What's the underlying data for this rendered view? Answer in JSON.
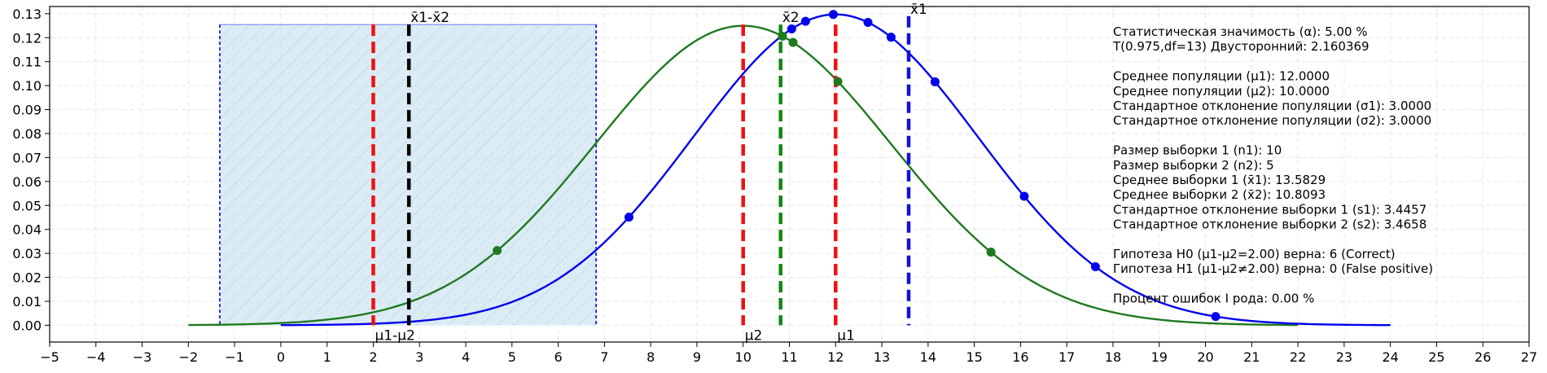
{
  "chart_data": {
    "type": "line",
    "xlim": [
      -5,
      27
    ],
    "ylim": [
      -0.007,
      0.133
    ],
    "x_ticks": [
      -5,
      -4,
      -3,
      -2,
      -1,
      0,
      1,
      2,
      3,
      4,
      5,
      6,
      7,
      8,
      9,
      10,
      11,
      12,
      13,
      14,
      15,
      16,
      17,
      18,
      19,
      20,
      21,
      22,
      23,
      24,
      25,
      26,
      27
    ],
    "x_tick_labels": [
      "−5",
      "−4",
      "−3",
      "−2",
      "−1",
      "0",
      "1",
      "2",
      "3",
      "4",
      "5",
      "6",
      "7",
      "8",
      "9",
      "10",
      "11",
      "12",
      "13",
      "14",
      "15",
      "16",
      "17",
      "18",
      "19",
      "20",
      "21",
      "22",
      "23",
      "24",
      "25",
      "26",
      "27"
    ],
    "y_ticks": [
      0.0,
      0.01,
      0.02,
      0.03,
      0.04,
      0.05,
      0.06,
      0.07,
      0.08,
      0.09,
      0.1,
      0.11,
      0.12,
      0.13
    ],
    "y_tick_labels": [
      "0.00",
      "0.01",
      "0.02",
      "0.03",
      "0.04",
      "0.05",
      "0.06",
      "0.07",
      "0.08",
      "0.09",
      "0.10",
      "0.11",
      "0.12",
      "0.13"
    ],
    "grid": true,
    "series": [
      {
        "color": "#1f7a1f",
        "distribution": "normal",
        "mu": 10,
        "sigma": 3.1926,
        "x_range": [
          -2,
          22
        ],
        "points_x": [
          4.68,
          10.85,
          11.08,
          12.05,
          15.36
        ]
      },
      {
        "color": "#0000ee",
        "distribution": "normal",
        "mu": 12,
        "sigma": 3.0759,
        "x_range": [
          0,
          24
        ],
        "points_x": [
          7.53,
          11.05,
          11.35,
          11.95,
          12.7,
          13.2,
          14.15,
          16.08,
          17.62,
          20.22
        ]
      }
    ],
    "confidence_band": {
      "x_from": -1.32,
      "x_to": 6.82,
      "y_top": 0.1255,
      "fill": "#cfe6f2",
      "edge": "#0000ee"
    },
    "vertical_markers": [
      {
        "x": 2.0,
        "color": "#ee1111",
        "y_top": 0.1255,
        "label": "μ1-μ2",
        "label_pos": "bottom"
      },
      {
        "x": 2.77,
        "color": "#000000",
        "y_top": 0.1255,
        "label": "x̄1-x̄2",
        "label_pos": "top"
      },
      {
        "x": 10.0,
        "color": "#ee1111",
        "y_top": 0.1255,
        "label": "μ2",
        "label_pos": "bottom"
      },
      {
        "x": 10.81,
        "color": "#118811",
        "y_top": 0.1255,
        "label": "x̄2",
        "label_pos": "top"
      },
      {
        "x": 12.0,
        "color": "#ee1111",
        "y_top": 0.1255,
        "label": "μ1",
        "label_pos": "bottom"
      },
      {
        "x": 13.58,
        "color": "#1111dd",
        "y_top": 0.129,
        "label": "x̄1",
        "label_pos": "top"
      }
    ],
    "stats_text": [
      "Статистическая значимость (α): 5.00 %",
      "T(0.975,df=13) Двусторонний: 2.160369",
      "",
      "Среднее популяции (μ1): 12.0000",
      "Среднее популяции (μ2): 10.0000",
      "Стандартное отклонение популяции (σ1): 3.0000",
      "Стандартное отклонение популяции (σ2): 3.0000",
      "",
      "Размер выборки 1 (n1): 10",
      "Размер выборки 2 (n2): 5",
      "Среднее выборки 1 (x̄1): 13.5829",
      "Среднее выборки 2 (x̄2): 10.8093",
      "Стандартное отклонение выборки 1 (s1): 3.4457",
      "Стандартное отклонение выборки 2 (s2): 3.4658",
      "",
      "Гипотеза H0 (μ1-μ2=2.00) верна: 6 (Correct)",
      "Гипотеза H1 (μ1-μ2≠2.00) верна: 0 (False positive)",
      "",
      "Процент ошибок I рода: 0.00 %"
    ]
  }
}
